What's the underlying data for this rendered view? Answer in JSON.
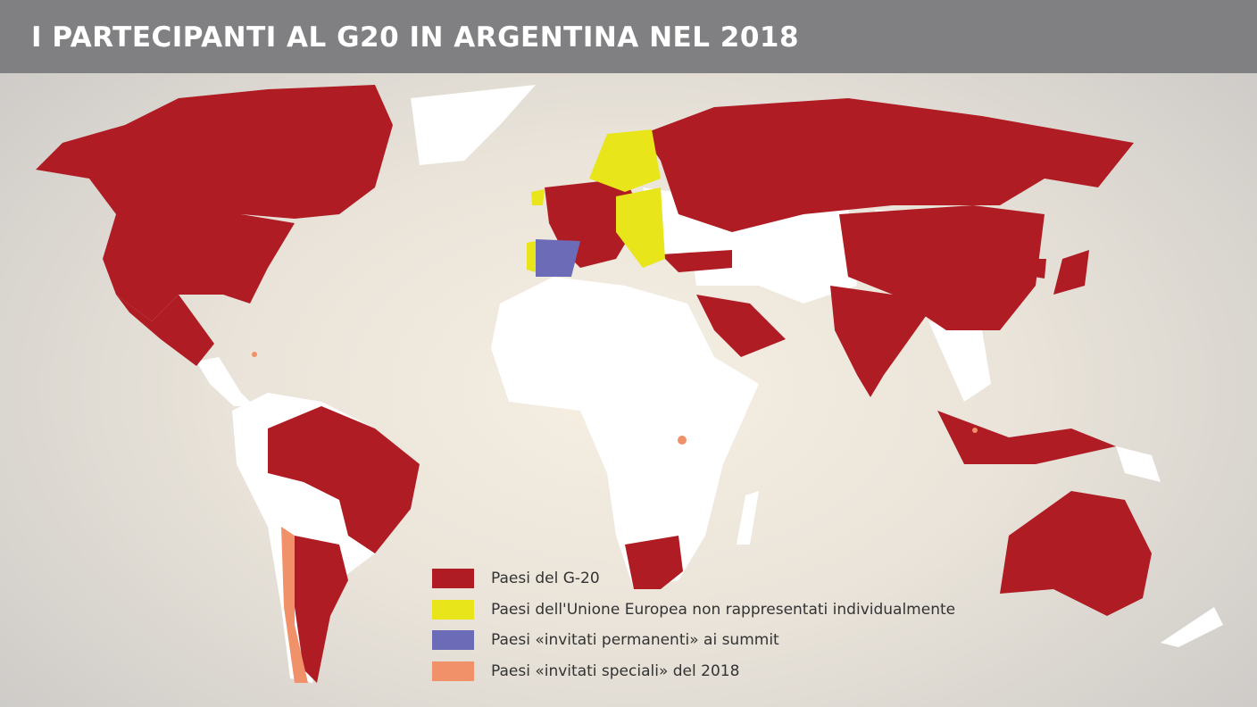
{
  "header": {
    "title": "I PARTECIPANTI AL G20 IN ARGENTINA NEL 2018"
  },
  "legend": [
    {
      "label": "Paesi del G-20",
      "color": "#b01c24"
    },
    {
      "label": "Paesi dell'Unione Europea non rappresentati individualmente",
      "color": "#e8e51a"
    },
    {
      "label": "Paesi «invitati permanenti» ai summit",
      "color": "#6b6bb8"
    },
    {
      "label": "Paesi «invitati speciali» del 2018",
      "color": "#f0916a"
    }
  ]
}
